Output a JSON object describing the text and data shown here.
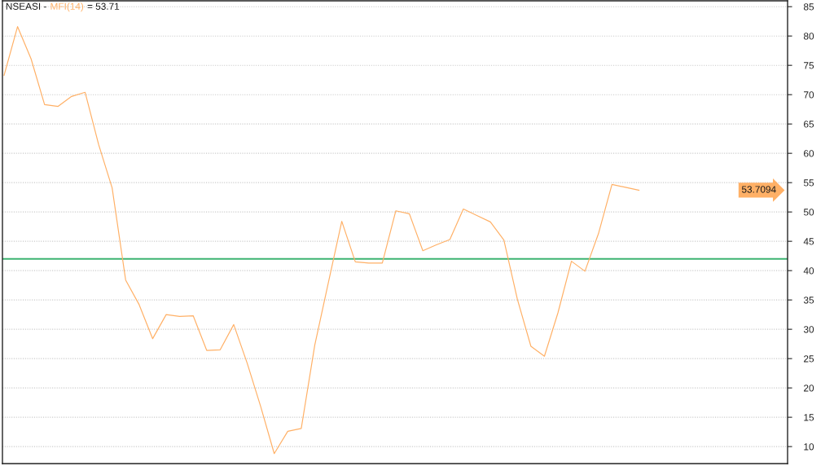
{
  "chart_data": {
    "type": "line",
    "title": "NSEASI -",
    "categories": [
      null,
      null,
      null,
      null,
      null,
      null,
      null,
      null,
      null,
      null,
      null,
      null,
      null,
      null,
      null,
      null,
      null,
      null,
      null,
      null,
      null,
      null,
      null,
      null,
      null,
      null,
      null,
      null,
      null,
      null,
      null,
      null,
      null,
      null,
      null,
      null,
      null,
      null,
      null,
      null,
      null,
      null,
      null,
      null,
      null,
      null,
      null,
      null
    ],
    "series": [
      {
        "name": "MFI(14)",
        "color": "#ffb066",
        "values": [
          73.3,
          81.6,
          76.1,
          68.3,
          68.0,
          69.7,
          70.4,
          61.5,
          54.1,
          38.4,
          34.2,
          28.4,
          32.5,
          32.2,
          32.3,
          26.4,
          26.5,
          30.8,
          24.2,
          16.8,
          8.8,
          12.6,
          13.1,
          27.3,
          37.9,
          48.4,
          41.5,
          41.3,
          41.3,
          50.2,
          49.7,
          43.4,
          44.4,
          45.3,
          50.5,
          49.4,
          48.3,
          45.2,
          35.1,
          27.1,
          25.4,
          32.8,
          41.6,
          39.9,
          46.3,
          54.7,
          54.2,
          53.7094
        ]
      }
    ],
    "ylim": [
      7.1,
      86
    ],
    "yticks": [
      10,
      15,
      20,
      25,
      30,
      35,
      40,
      45,
      50,
      55,
      60,
      65,
      70,
      75,
      80,
      85
    ],
    "ref_lines": [
      {
        "axis": "y",
        "value": 42,
        "color": "#3cb371"
      }
    ],
    "annotations": [
      "= 53.71",
      "53.7094"
    ],
    "grid": "y",
    "legend": "top left",
    "tick_labels": "y",
    "line_style": "solid"
  }
}
